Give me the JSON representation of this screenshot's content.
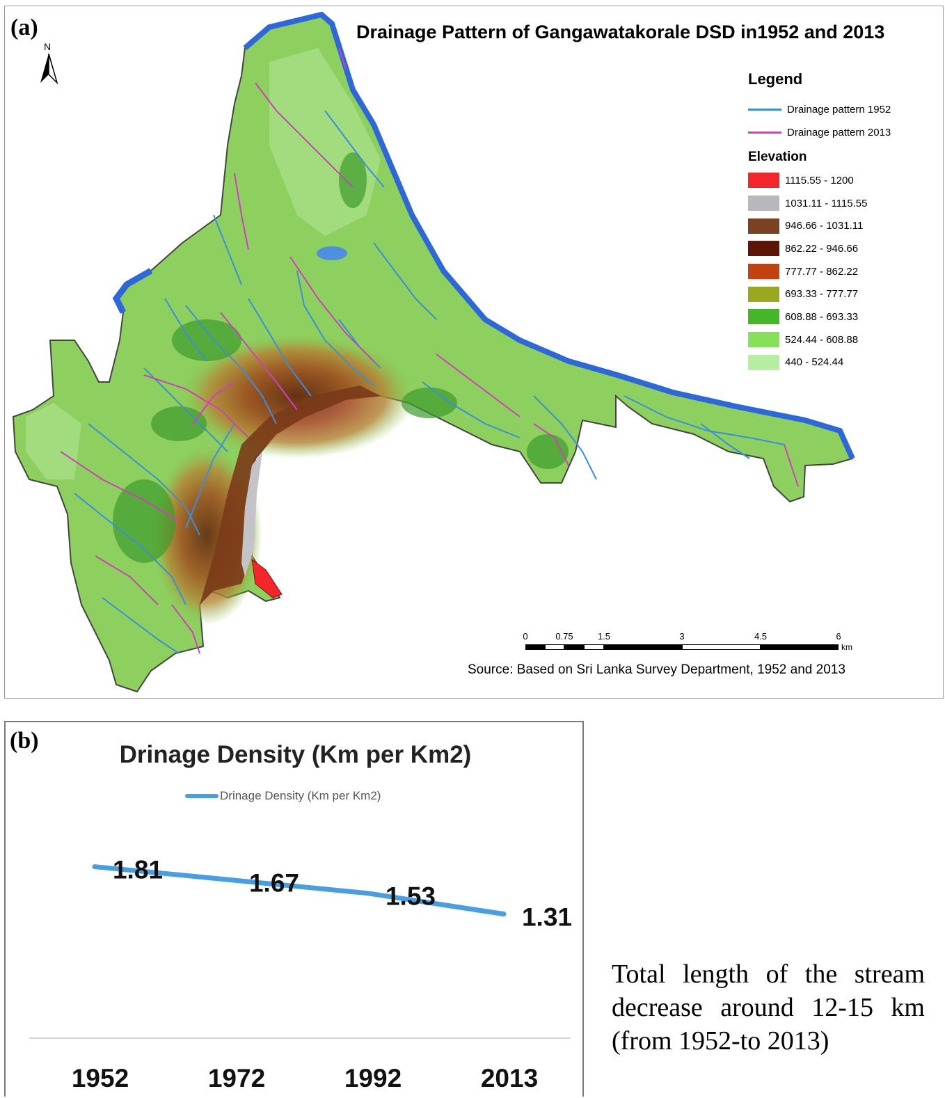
{
  "panel_a": {
    "label": "(a)",
    "title": "Drainage Pattern of Gangawatakorale DSD in1952 and 2013",
    "north_label": "N",
    "legend": {
      "title": "Legend",
      "lines": [
        {
          "label": "Drainage pattern 1952",
          "color": "#3a8fd8"
        },
        {
          "label": "Drainage pattern 2013",
          "color": "#d23fbd"
        }
      ],
      "elevation_title": "Elevation",
      "elevation_classes": [
        {
          "label": "1115.55 - 1200",
          "color": "#f3272a"
        },
        {
          "label": "1031.11 - 1115.55",
          "color": "#b8b8bc"
        },
        {
          "label": "946.66 - 1031.11",
          "color": "#7a4122"
        },
        {
          "label": "862.22 - 946.66",
          "color": "#5c1507"
        },
        {
          "label": "777.77 - 862.22",
          "color": "#c2420f"
        },
        {
          "label": "693.33 - 777.77",
          "color": "#9aa820"
        },
        {
          "label": "608.88 - 693.33",
          "color": "#45b52a"
        },
        {
          "label": "524.44 - 608.88",
          "color": "#86e05a"
        },
        {
          "label": "440 - 524.44",
          "color": "#b6eda0"
        }
      ]
    },
    "scale": {
      "ticks": [
        "0",
        "0.75",
        "1.5",
        "3",
        "4.5",
        "6"
      ],
      "unit": "km"
    },
    "source": "Source: Based on Sri Lanka Survey Department, 1952 and 2013"
  },
  "panel_b": {
    "label": "(b)",
    "chart_data": {
      "type": "line",
      "title": "Drinage Density (Km per Km2)",
      "categories": [
        "1952",
        "1972",
        "1992",
        "2013"
      ],
      "series": [
        {
          "name": "Drinage Density (Km per Km2)",
          "values": [
            1.81,
            1.67,
            1.53,
            1.31
          ],
          "color": "#4a9ee0"
        }
      ],
      "data_labels": [
        "1.81",
        "1.67",
        "1.53",
        "1.31"
      ],
      "ylim": [
        0,
        2.6
      ],
      "grid": false,
      "legend_position": "top"
    }
  },
  "note": "Total length of the stream decrease around 12-15 km (from 1952-to 2013)"
}
